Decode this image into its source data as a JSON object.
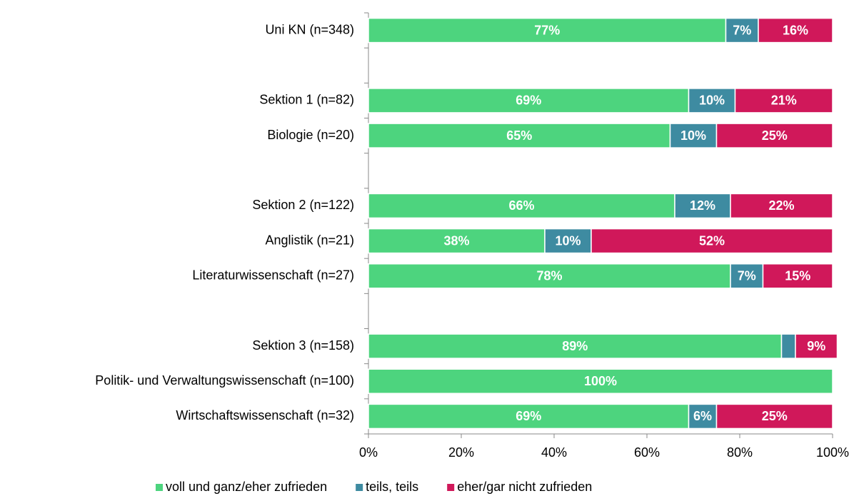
{
  "chart_data": {
    "type": "stacked-barh",
    "categories": [
      "Uni KN (n=348)",
      null,
      "Sektion 1 (n=82)",
      "Biologie (n=20)",
      null,
      "Sektion 2 (n=122)",
      "Anglistik (n=21)",
      "Literaturwissenschaft (n=27)",
      null,
      "Sektion 3 (n=158)",
      "Politik- und Verwaltungswissenschaft (n=100)",
      "Wirtschaftswissenschaft (n=32)"
    ],
    "series": [
      {
        "name": "voll und ganz/eher zufrieden",
        "color": "#4dd47e",
        "values": [
          77,
          null,
          69,
          65,
          null,
          66,
          38,
          78,
          null,
          89,
          100,
          69
        ],
        "value_labels": [
          "77%",
          null,
          "69%",
          "65%",
          null,
          "66%",
          "38%",
          "78%",
          null,
          "89%",
          "100%",
          "69%"
        ]
      },
      {
        "name": "teils, teils",
        "color": "#3e8ba1",
        "values": [
          7,
          null,
          10,
          10,
          null,
          12,
          10,
          7,
          null,
          3,
          0,
          6
        ],
        "value_labels": [
          "7%",
          null,
          "10%",
          "10%",
          null,
          "12%",
          "10%",
          "7%",
          null,
          null,
          null,
          "6%"
        ]
      },
      {
        "name": "eher/gar nicht zufrieden",
        "color": "#d0185a",
        "values": [
          16,
          null,
          21,
          25,
          null,
          22,
          52,
          15,
          null,
          9,
          0,
          25
        ],
        "value_labels": [
          "16%",
          null,
          "21%",
          "25%",
          null,
          "22%",
          "52%",
          "15%",
          null,
          "9%",
          null,
          "25%"
        ]
      }
    ],
    "xlim": [
      0,
      100
    ],
    "xticks": [
      {
        "value": 0,
        "label": "0%"
      },
      {
        "value": 20,
        "label": "20%"
      },
      {
        "value": 40,
        "label": "40%"
      },
      {
        "value": 60,
        "label": "60%"
      },
      {
        "value": 80,
        "label": "80%"
      },
      {
        "value": 100,
        "label": "100%"
      }
    ],
    "legend": "bottom"
  }
}
